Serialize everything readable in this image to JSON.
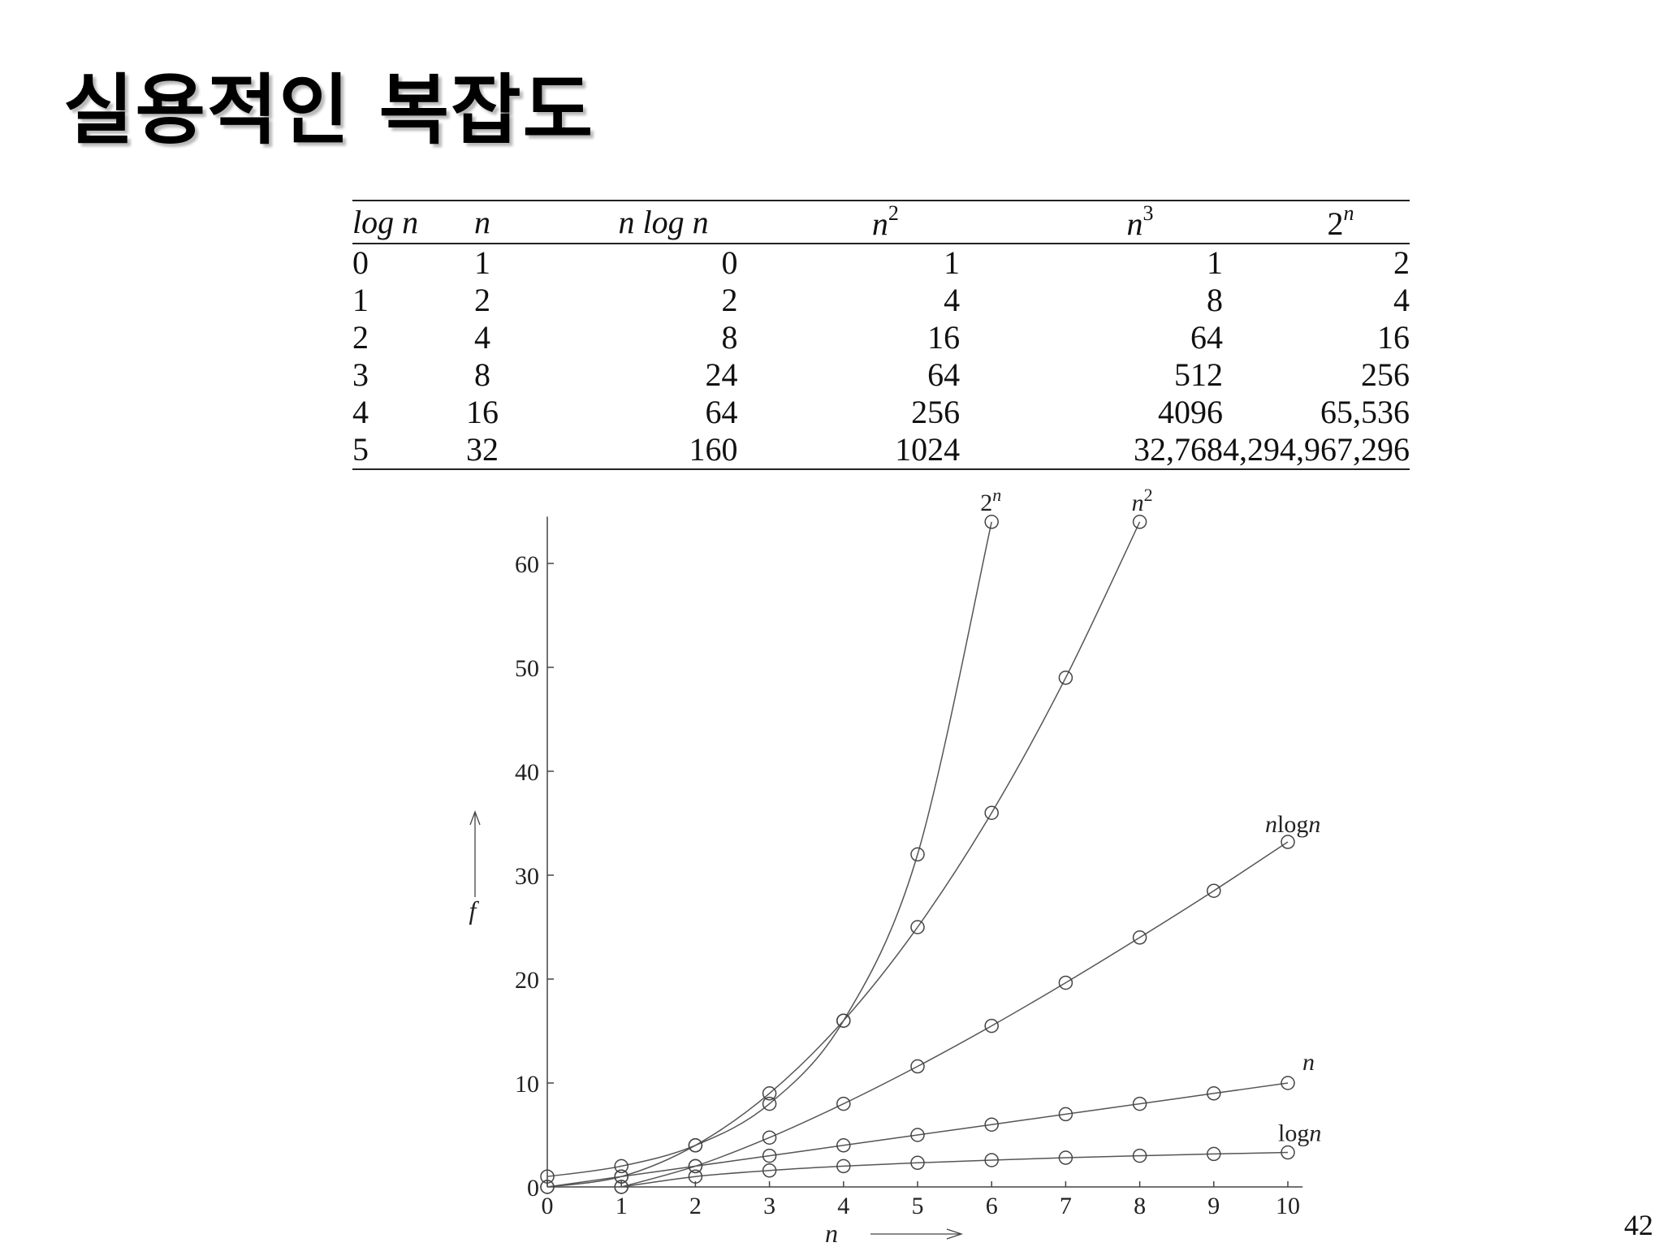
{
  "title": "실용적인 복잡도",
  "page_number": "42",
  "table": {
    "headers": [
      {
        "main": "log n",
        "sup": ""
      },
      {
        "main": "n",
        "sup": ""
      },
      {
        "main": "n log n",
        "sup": ""
      },
      {
        "main": "n",
        "sup": "2"
      },
      {
        "main": "n",
        "sup": "3"
      },
      {
        "main": "2",
        "sup": "n"
      }
    ],
    "rows": [
      [
        "0",
        "1",
        "0",
        "1",
        "1",
        "2"
      ],
      [
        "1",
        "2",
        "2",
        "4",
        "8",
        "4"
      ],
      [
        "2",
        "4",
        "8",
        "16",
        "64",
        "16"
      ],
      [
        "3",
        "8",
        "24",
        "64",
        "512",
        "256"
      ],
      [
        "4",
        "16",
        "64",
        "256",
        "4096",
        "65,536"
      ],
      [
        "5",
        "32",
        "160",
        "1024",
        "32,768",
        "4,294,967,296"
      ]
    ]
  },
  "chart_data": {
    "type": "line",
    "xlabel": "n",
    "ylabel": "f",
    "xlim": [
      0,
      10
    ],
    "ylim": [
      0,
      64
    ],
    "x_ticks": [
      "0",
      "1",
      "2",
      "3",
      "4",
      "5",
      "6",
      "7",
      "8",
      "9",
      "10"
    ],
    "y_ticks": [
      "0",
      "10",
      "20",
      "30",
      "40",
      "50",
      "60"
    ],
    "grid": false,
    "series": [
      {
        "name": "2",
        "name_sup": "n",
        "x": [
          0,
          1,
          2,
          3,
          4,
          5,
          6
        ],
        "y": [
          1,
          2,
          4,
          8,
          16,
          32,
          64
        ]
      },
      {
        "name": "n",
        "name_sup": "2",
        "x": [
          0,
          1,
          2,
          3,
          4,
          5,
          6,
          7,
          8
        ],
        "y": [
          0,
          1,
          4,
          9,
          16,
          25,
          36,
          49,
          64
        ]
      },
      {
        "name": "nlogn",
        "name_sup": "",
        "x": [
          1,
          2,
          3,
          4,
          5,
          6,
          7,
          8,
          9,
          10
        ],
        "y": [
          0,
          2,
          4.75,
          8,
          11.6,
          15.5,
          19.65,
          24,
          28.5,
          33.2
        ]
      },
      {
        "name": "n",
        "name_sup": "",
        "x": [
          0,
          1,
          2,
          3,
          4,
          5,
          6,
          7,
          8,
          9,
          10
        ],
        "y": [
          0,
          1,
          2,
          3,
          4,
          5,
          6,
          7,
          8,
          9,
          10
        ]
      },
      {
        "name": "logn",
        "name_sup": "",
        "x": [
          1,
          2,
          3,
          4,
          5,
          6,
          7,
          8,
          9,
          10
        ],
        "y": [
          0,
          1,
          1.58,
          2,
          2.32,
          2.58,
          2.81,
          3,
          3.17,
          3.32
        ]
      }
    ]
  }
}
